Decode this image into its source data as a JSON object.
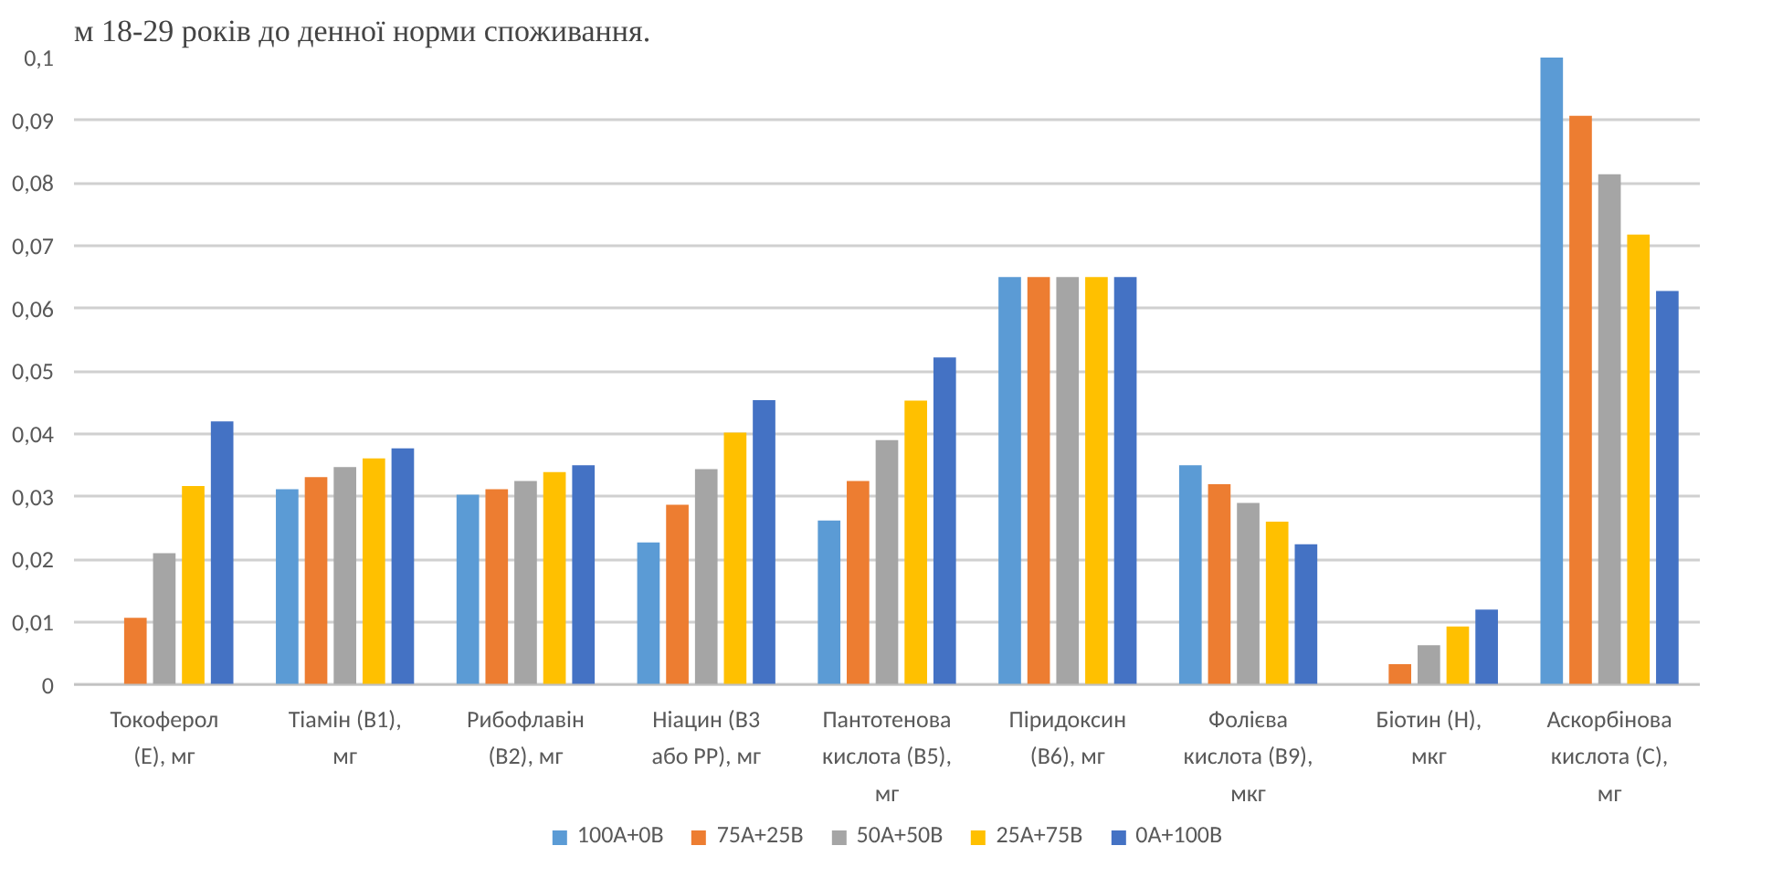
{
  "chart_data": {
    "type": "bar",
    "title": "м 18-29 років до денної норми споживання.",
    "categories": [
      "Токоферол (Е), мг",
      "Тіамін (В1), мг",
      "Рибофлавін (В2), мг",
      "Ніацин (В3 або РР), мг",
      "Пантотенова кислота (В5), мг",
      "Піридоксин (В6), мг",
      "Фолієва кислота (В9), мкг",
      "Біотин (Н), мкг",
      "Аскорбінова кислота (С), мг"
    ],
    "series": [
      {
        "name": "100A+0B",
        "color": "#5b9bd5",
        "values": [
          0,
          0.0312,
          0.0303,
          0.0227,
          0.0262,
          0.065,
          0.035,
          0,
          0.1
        ]
      },
      {
        "name": "75A+25B",
        "color": "#ed7d31",
        "values": [
          0.0107,
          0.0331,
          0.0312,
          0.0287,
          0.0325,
          0.065,
          0.032,
          0.0033,
          0.0907
        ]
      },
      {
        "name": "50A+50B",
        "color": "#a5a5a5",
        "values": [
          0.021,
          0.0347,
          0.0325,
          0.0344,
          0.039,
          0.065,
          0.029,
          0.0063,
          0.0814
        ]
      },
      {
        "name": "25A+75B",
        "color": "#ffc000",
        "values": [
          0.0317,
          0.0361,
          0.0339,
          0.0402,
          0.0453,
          0.065,
          0.026,
          0.0093,
          0.0718
        ]
      },
      {
        "name": "0A+100B",
        "color": "#4472c4",
        "values": [
          0.042,
          0.0377,
          0.035,
          0.0454,
          0.0522,
          0.065,
          0.0224,
          0.012,
          0.0628
        ]
      }
    ],
    "ylim": [
      0,
      0.1
    ],
    "yticks": [
      0,
      {
        "value": 0.01,
        "label": "0,01"
      },
      {
        "value": 0.02,
        "label": "0,02"
      },
      {
        "value": 0.03,
        "label": "0,03"
      },
      {
        "value": 0.04,
        "label": "0,04"
      },
      {
        "value": 0.05,
        "label": "0,05"
      },
      {
        "value": 0.06,
        "label": "0,06"
      },
      {
        "value": 0.07,
        "label": "0,07"
      },
      {
        "value": 0.08,
        "label": "0,08"
      },
      {
        "value": 0.09,
        "label": "0,09"
      },
      {
        "value": 0.1,
        "label": "0,1"
      }
    ],
    "grid": "y",
    "legend": "bottom"
  }
}
